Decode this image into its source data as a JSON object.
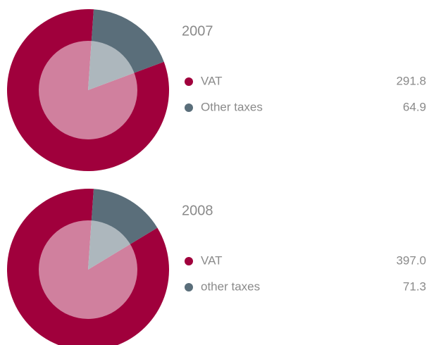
{
  "chart_data": [
    {
      "type": "pie",
      "title": "2007",
      "categories": [
        "VAT",
        "Other taxes"
      ],
      "values": [
        291.8,
        64.9
      ],
      "value_labels": [
        "291.8",
        "64.9"
      ],
      "colors": [
        "#a0003c",
        "#5a6e7a"
      ]
    },
    {
      "type": "pie",
      "title": "2008",
      "categories": [
        "VAT",
        "other taxes"
      ],
      "values": [
        397.0,
        71.3
      ],
      "value_labels": [
        "397.0",
        "71.3"
      ],
      "colors": [
        "#a0003c",
        "#5a6e7a"
      ]
    }
  ]
}
